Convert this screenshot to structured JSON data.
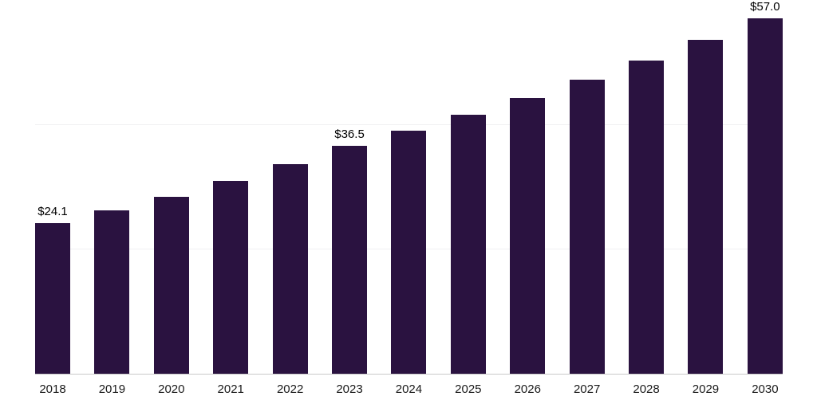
{
  "chart_data": {
    "type": "bar",
    "title": "",
    "xlabel": "",
    "ylabel": "",
    "categories": [
      "2018",
      "2019",
      "2020",
      "2021",
      "2022",
      "2023",
      "2024",
      "2025",
      "2026",
      "2027",
      "2028",
      "2029",
      "2030"
    ],
    "values": [
      24.1,
      26.2,
      28.4,
      30.9,
      33.6,
      36.5,
      38.9,
      41.5,
      44.2,
      47.1,
      50.2,
      53.5,
      57.0
    ],
    "data_labels": [
      "$24.1",
      "",
      "",
      "",
      "",
      "$36.5",
      "",
      "",
      "",
      "",
      "",
      "",
      "$57.0"
    ],
    "ylim": [
      0,
      60
    ],
    "gridline_values": [
      20,
      40,
      60
    ],
    "grid": "faint horizontal gridlines, no y-axis tick labels",
    "legend": "none",
    "bar_color": "#2a1240",
    "axis_line_color": "#c9c9c9",
    "gridline_color": "#f0f0f2",
    "label_color": "#000000",
    "tick_label_color": "#1a1a1a"
  }
}
